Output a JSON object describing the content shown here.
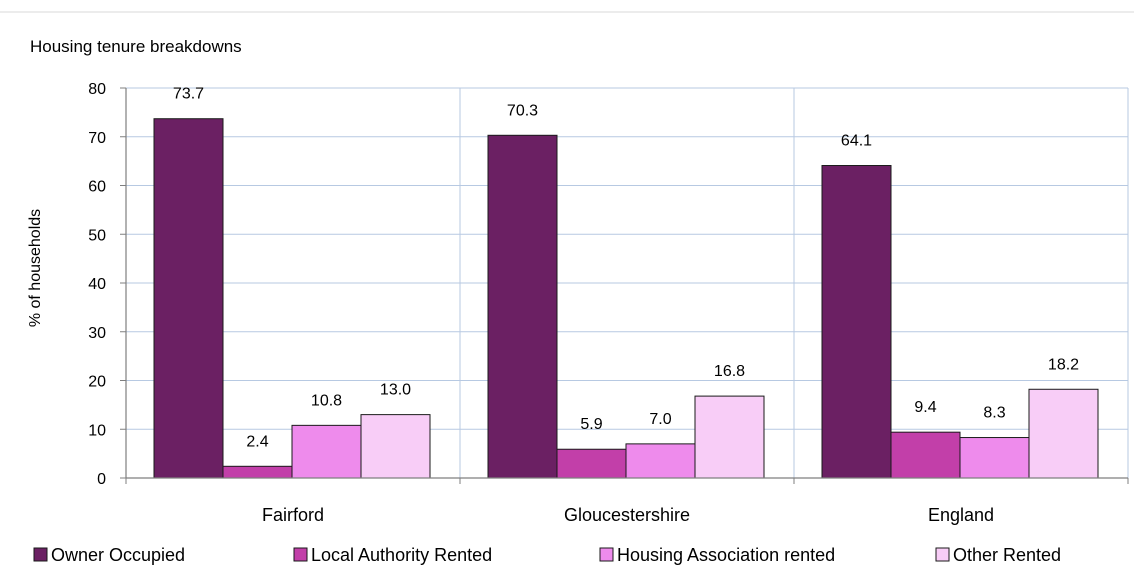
{
  "chart_data": {
    "type": "bar",
    "title": "Housing tenure breakdowns",
    "ylabel": "% of households",
    "xlabel": "",
    "ylim": [
      0,
      80
    ],
    "yticks": [
      0,
      10,
      20,
      30,
      40,
      50,
      60,
      70,
      80
    ],
    "categories": [
      "Fairford",
      "Gloucestershire",
      "England"
    ],
    "series": [
      {
        "name": "Owner Occupied",
        "values": [
          73.7,
          70.3,
          64.1
        ],
        "labels": [
          "73.7",
          "70.3",
          "64.1"
        ],
        "color": "#6B2063"
      },
      {
        "name": "Local Authority Rented",
        "values": [
          2.4,
          5.9,
          9.4
        ],
        "labels": [
          "2.4",
          "5.9",
          "9.4"
        ],
        "color": "#C23FA9"
      },
      {
        "name": "Housing Association rented",
        "values": [
          10.8,
          7.0,
          8.3
        ],
        "labels": [
          "10.8",
          "7.0",
          "8.3"
        ],
        "color": "#EE8BEC"
      },
      {
        "name": "Other Rented",
        "values": [
          13.0,
          16.8,
          18.2
        ],
        "labels": [
          "13.0",
          "16.8",
          "18.2"
        ],
        "color": "#F8CDF7"
      }
    ],
    "grid": true,
    "legend": "bottom",
    "colors": {
      "grid": "#B7C9E2",
      "axis": "#7F7F7F",
      "bar_outline": "#1A1A1A"
    }
  }
}
